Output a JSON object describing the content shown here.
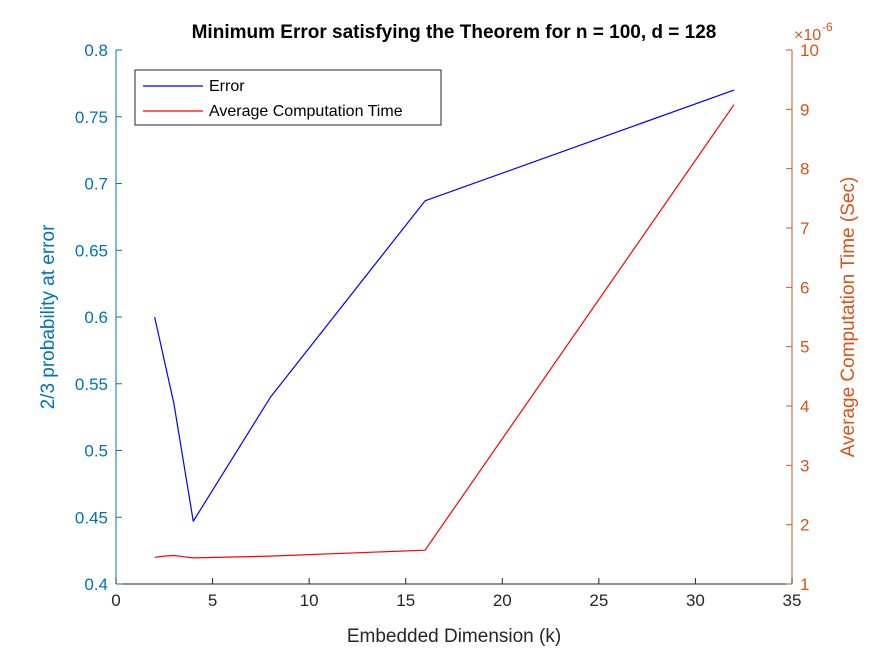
{
  "chart_data": {
    "type": "line",
    "title": "Minimum Error satisfying the Theorem for n = 100, d = 128",
    "xlabel": "Embedded Dimension (k)",
    "xlim": [
      0,
      35
    ],
    "xticks": [
      "0",
      "5",
      "10",
      "15",
      "20",
      "25",
      "30",
      "35"
    ],
    "xtick_values": [
      0,
      5,
      10,
      15,
      20,
      25,
      30,
      35
    ],
    "left_axis": {
      "label": "2/3 probability at error",
      "ylim": [
        0.4,
        0.8
      ],
      "ticks": [
        "0.4",
        "0.45",
        "0.5",
        "0.55",
        "0.6",
        "0.65",
        "0.7",
        "0.75",
        "0.8"
      ],
      "tick_values": [
        0.4,
        0.45,
        0.5,
        0.55,
        0.6,
        0.65,
        0.7,
        0.75,
        0.8
      ],
      "color": "#0072BD"
    },
    "right_axis": {
      "label": "Average Computation Time (Sec)",
      "ylim": [
        1,
        10
      ],
      "ticks": [
        "1",
        "2",
        "3",
        "4",
        "5",
        "6",
        "7",
        "8",
        "9",
        "10"
      ],
      "tick_values": [
        1,
        2,
        3,
        4,
        5,
        6,
        7,
        8,
        9,
        10
      ],
      "exponent_label": "×10",
      "exponent_power": "-6",
      "color": "#D95319"
    },
    "series": [
      {
        "name": "Error",
        "axis": "left",
        "color": "#0000ff",
        "x": [
          2,
          3,
          4,
          8,
          16,
          32
        ],
        "y": [
          0.6,
          0.535,
          0.447,
          0.54,
          0.687,
          0.77
        ]
      },
      {
        "name": "Average Computation Time",
        "axis": "right",
        "color": "#ff0000",
        "x": [
          2,
          2.5,
          3,
          3.5,
          4,
          8,
          16,
          32
        ],
        "y": [
          1.45,
          1.47,
          1.48,
          1.46,
          1.44,
          1.47,
          1.57,
          9.08
        ]
      }
    ],
    "legend_position": "top-left",
    "grid": false
  }
}
